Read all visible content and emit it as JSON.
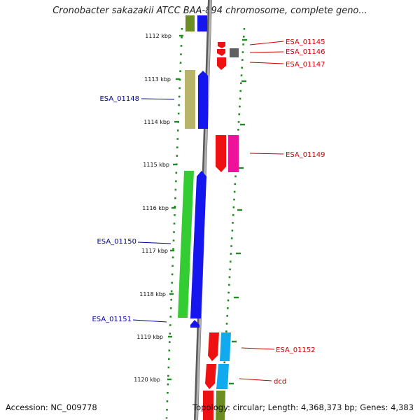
{
  "title": "Cronobacter sakazakii ATCC BAA-894 chromosome, complete geno...",
  "footer": {
    "accession": "Accession: NC_009778",
    "summary": "Topology: circular; Length: 4,368,373 bp; Genes: 4,383"
  },
  "colors": {
    "plus_label": "#cc0000",
    "minus_label": "#000099",
    "backbone": "#888888",
    "ticks": "#228b22"
  },
  "scale_labels": [
    "1112 kbp",
    "1113 kbp",
    "1114 kbp",
    "1115 kbp",
    "1116 kbp",
    "1117 kbp",
    "1118 kbp",
    "1119 kbp",
    "1120 kbp"
  ],
  "gene_labels": {
    "plus": [
      "ESA_01145",
      "ESA_01146",
      "ESA_01147",
      "ESA_01149",
      "ESA_01152",
      "dcd"
    ],
    "minus": [
      "ESA_01148",
      "ESA_01150",
      "ESA_01151"
    ]
  }
}
